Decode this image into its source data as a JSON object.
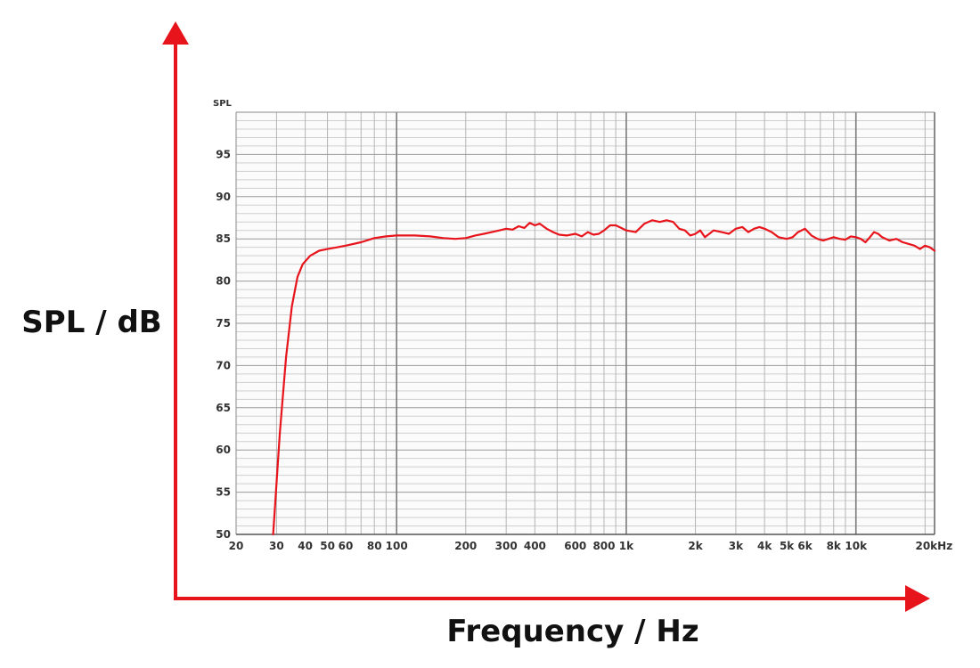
{
  "chart_data": {
    "type": "line",
    "x_scale": "log",
    "xlim": [
      20,
      22000
    ],
    "ylim": [
      50,
      100
    ],
    "grid": true,
    "axis_top_label": "SPL",
    "xlabel": "Frequency / Hz",
    "ylabel": "SPL / dB",
    "x_tick_labels": [
      {
        "value": 20,
        "label": "20"
      },
      {
        "value": 30,
        "label": "30"
      },
      {
        "value": 40,
        "label": "40"
      },
      {
        "value": 50,
        "label": "50"
      },
      {
        "value": 60,
        "label": "60"
      },
      {
        "value": 80,
        "label": "80"
      },
      {
        "value": 100,
        "label": "100"
      },
      {
        "value": 200,
        "label": "200"
      },
      {
        "value": 300,
        "label": "300"
      },
      {
        "value": 400,
        "label": "400"
      },
      {
        "value": 600,
        "label": "600"
      },
      {
        "value": 800,
        "label": "800"
      },
      {
        "value": 1000,
        "label": "1k"
      },
      {
        "value": 2000,
        "label": "2k"
      },
      {
        "value": 3000,
        "label": "3k"
      },
      {
        "value": 4000,
        "label": "4k"
      },
      {
        "value": 5000,
        "label": "5k"
      },
      {
        "value": 6000,
        "label": "6k"
      },
      {
        "value": 8000,
        "label": "8k"
      },
      {
        "value": 10000,
        "label": "10k"
      },
      {
        "value": 20000,
        "label": "20kHz"
      }
    ],
    "y_tick_labels": [
      {
        "value": 50,
        "label": "50"
      },
      {
        "value": 55,
        "label": "55"
      },
      {
        "value": 60,
        "label": "60"
      },
      {
        "value": 65,
        "label": "65"
      },
      {
        "value": 70,
        "label": "70"
      },
      {
        "value": 75,
        "label": "75"
      },
      {
        "value": 80,
        "label": "80"
      },
      {
        "value": 85,
        "label": "85"
      },
      {
        "value": 90,
        "label": "90"
      },
      {
        "value": 95,
        "label": "95"
      }
    ],
    "series": [
      {
        "color": "#e8141c",
        "points": [
          [
            29,
            50
          ],
          [
            31,
            62
          ],
          [
            33,
            71
          ],
          [
            35,
            77
          ],
          [
            37,
            80.5
          ],
          [
            39,
            82
          ],
          [
            42,
            83
          ],
          [
            46,
            83.6
          ],
          [
            50,
            83.8
          ],
          [
            55,
            84
          ],
          [
            60,
            84.2
          ],
          [
            70,
            84.6
          ],
          [
            80,
            85.1
          ],
          [
            90,
            85.3
          ],
          [
            100,
            85.4
          ],
          [
            120,
            85.4
          ],
          [
            140,
            85.3
          ],
          [
            160,
            85.1
          ],
          [
            180,
            85.0
          ],
          [
            200,
            85.1
          ],
          [
            220,
            85.4
          ],
          [
            240,
            85.6
          ],
          [
            260,
            85.8
          ],
          [
            280,
            86.0
          ],
          [
            300,
            86.2
          ],
          [
            320,
            86.1
          ],
          [
            340,
            86.5
          ],
          [
            360,
            86.3
          ],
          [
            380,
            86.9
          ],
          [
            400,
            86.6
          ],
          [
            420,
            86.8
          ],
          [
            450,
            86.2
          ],
          [
            480,
            85.8
          ],
          [
            510,
            85.5
          ],
          [
            550,
            85.4
          ],
          [
            600,
            85.6
          ],
          [
            640,
            85.3
          ],
          [
            680,
            85.8
          ],
          [
            720,
            85.5
          ],
          [
            760,
            85.6
          ],
          [
            800,
            86.0
          ],
          [
            850,
            86.6
          ],
          [
            900,
            86.6
          ],
          [
            950,
            86.3
          ],
          [
            1000,
            86.0
          ],
          [
            1100,
            85.8
          ],
          [
            1200,
            86.8
          ],
          [
            1300,
            87.2
          ],
          [
            1400,
            87.0
          ],
          [
            1500,
            87.2
          ],
          [
            1600,
            87.0
          ],
          [
            1700,
            86.2
          ],
          [
            1800,
            86.0
          ],
          [
            1900,
            85.4
          ],
          [
            2000,
            85.6
          ],
          [
            2100,
            86.0
          ],
          [
            2200,
            85.2
          ],
          [
            2300,
            85.6
          ],
          [
            2400,
            86.0
          ],
          [
            2600,
            85.8
          ],
          [
            2800,
            85.6
          ],
          [
            3000,
            86.2
          ],
          [
            3200,
            86.4
          ],
          [
            3400,
            85.8
          ],
          [
            3600,
            86.2
          ],
          [
            3800,
            86.4
          ],
          [
            4000,
            86.2
          ],
          [
            4300,
            85.8
          ],
          [
            4600,
            85.2
          ],
          [
            5000,
            85.0
          ],
          [
            5300,
            85.2
          ],
          [
            5600,
            85.8
          ],
          [
            6000,
            86.2
          ],
          [
            6400,
            85.4
          ],
          [
            6800,
            85.0
          ],
          [
            7200,
            84.8
          ],
          [
            7600,
            85.0
          ],
          [
            8000,
            85.2
          ],
          [
            8500,
            85.0
          ],
          [
            9000,
            84.9
          ],
          [
            9500,
            85.3
          ],
          [
            10000,
            85.2
          ],
          [
            10500,
            85.0
          ],
          [
            11000,
            84.6
          ],
          [
            11500,
            85.2
          ],
          [
            12000,
            85.8
          ],
          [
            12500,
            85.6
          ],
          [
            13000,
            85.2
          ],
          [
            14000,
            84.8
          ],
          [
            15000,
            85.0
          ],
          [
            16000,
            84.6
          ],
          [
            17000,
            84.4
          ],
          [
            18000,
            84.2
          ],
          [
            19000,
            83.8
          ],
          [
            20000,
            84.2
          ],
          [
            21000,
            84.0
          ],
          [
            22000,
            83.6
          ]
        ]
      }
    ],
    "arrow_color": "#e8141c"
  }
}
